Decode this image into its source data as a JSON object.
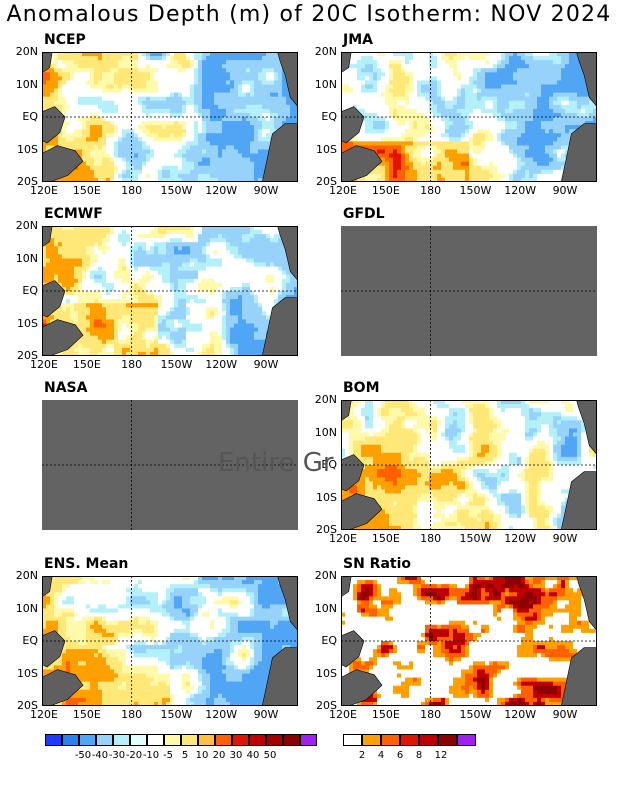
{
  "title": "Anomalous Depth (m) of 20C Isotherm: NOV 2024",
  "overlay_text": "Entire Gr",
  "axes": {
    "lat_labels": [
      "20N",
      "10N",
      "EQ",
      "10S",
      "20S"
    ],
    "lon_labels": [
      "120E",
      "150E",
      "180",
      "150W",
      "120W",
      "90W"
    ]
  },
  "colors": {
    "missing": "#636363",
    "land": "#5f5f5f",
    "anom_scale": [
      "#1e3cff",
      "#2882f0",
      "#50a5f5",
      "#96d2fa",
      "#b4f0fa",
      "#e1ffff",
      "#ffffff",
      "#fffaaa",
      "#ffe878",
      "#ffc03c",
      "#ffa000",
      "#ff6000",
      "#e11400",
      "#c00000",
      "#a50000",
      "#8c0000",
      "#a020f0"
    ],
    "sn_scale": [
      "#ffffff",
      "#ffa000",
      "#ff6000",
      "#e11400",
      "#c00000",
      "#8c0000",
      "#a020f0"
    ]
  },
  "chart_data": [
    {
      "type": "heatmap",
      "title": "NCEP",
      "status": "data",
      "pattern": "ncep"
    },
    {
      "type": "heatmap",
      "title": "JMA",
      "status": "data",
      "pattern": "jma"
    },
    {
      "type": "heatmap",
      "title": "ECMWF",
      "status": "data",
      "pattern": "ecmwf"
    },
    {
      "type": "heatmap",
      "title": "GFDL",
      "status": "missing",
      "pattern": "none"
    },
    {
      "type": "heatmap",
      "title": "NASA",
      "status": "missing",
      "pattern": "none"
    },
    {
      "type": "heatmap",
      "title": "BOM",
      "status": "data",
      "pattern": "bom"
    },
    {
      "type": "heatmap",
      "title": "ENS. Mean",
      "status": "data",
      "pattern": "ens"
    },
    {
      "type": "heatmap",
      "title": "SN Ratio",
      "status": "data",
      "pattern": "sn"
    }
  ],
  "legend_anom": {
    "labels": [
      "-50",
      "-40",
      "-30",
      "-20",
      "-10",
      "-5",
      "5",
      "10",
      "20",
      "30",
      "40",
      "50"
    ]
  },
  "legend_sn": {
    "labels": [
      "2",
      "4",
      "6",
      "8",
      "12"
    ]
  }
}
